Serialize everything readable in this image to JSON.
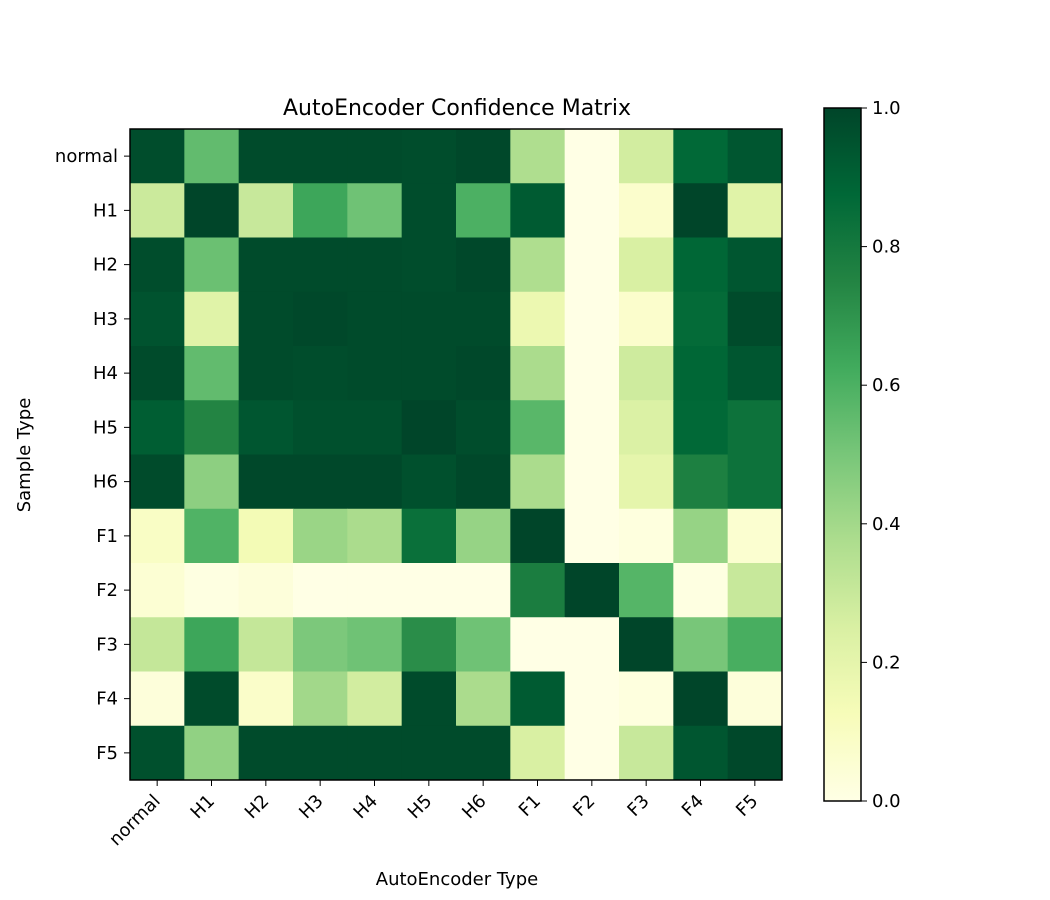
{
  "chart_data": {
    "type": "heatmap",
    "title": "AutoEncoder Confidence Matrix",
    "xlabel": "AutoEncoder Type",
    "ylabel": "Sample Type",
    "x_categories": [
      "normal",
      "H1",
      "H2",
      "H3",
      "H4",
      "H5",
      "H6",
      "F1",
      "F2",
      "F3",
      "F4",
      "F5"
    ],
    "y_categories": [
      "normal",
      "H1",
      "H2",
      "H3",
      "H4",
      "H5",
      "H6",
      "F1",
      "F2",
      "F3",
      "F4",
      "F5"
    ],
    "values": [
      [
        0.97,
        0.55,
        0.98,
        0.98,
        0.98,
        0.97,
        0.99,
        0.37,
        0.0,
        0.27,
        0.87,
        0.94
      ],
      [
        0.29,
        1.0,
        0.3,
        0.64,
        0.52,
        0.97,
        0.6,
        0.92,
        0.0,
        0.07,
        1.0,
        0.22
      ],
      [
        0.97,
        0.53,
        0.98,
        0.98,
        0.98,
        0.97,
        0.99,
        0.37,
        0.0,
        0.25,
        0.88,
        0.94
      ],
      [
        0.95,
        0.22,
        0.98,
        0.99,
        0.98,
        0.98,
        0.98,
        0.17,
        0.0,
        0.07,
        0.86,
        0.98
      ],
      [
        0.98,
        0.55,
        0.98,
        0.97,
        0.98,
        0.98,
        0.99,
        0.38,
        0.0,
        0.28,
        0.88,
        0.94
      ],
      [
        0.91,
        0.75,
        0.94,
        0.96,
        0.96,
        1.0,
        0.97,
        0.57,
        0.0,
        0.24,
        0.87,
        0.83
      ],
      [
        0.98,
        0.45,
        0.99,
        0.99,
        0.99,
        0.96,
        0.99,
        0.38,
        0.0,
        0.2,
        0.77,
        0.83
      ],
      [
        0.09,
        0.59,
        0.14,
        0.42,
        0.38,
        0.84,
        0.43,
        1.0,
        0.0,
        0.02,
        0.43,
        0.06
      ],
      [
        0.05,
        0.01,
        0.03,
        0.0,
        0.0,
        0.0,
        0.0,
        0.78,
        1.0,
        0.58,
        0.01,
        0.3
      ],
      [
        0.31,
        0.64,
        0.31,
        0.49,
        0.52,
        0.72,
        0.52,
        0.0,
        0.0,
        1.0,
        0.5,
        0.61
      ],
      [
        0.03,
        0.98,
        0.08,
        0.4,
        0.27,
        0.98,
        0.38,
        0.92,
        0.0,
        0.02,
        1.0,
        0.03
      ],
      [
        0.96,
        0.44,
        0.98,
        0.98,
        0.98,
        0.98,
        0.98,
        0.25,
        0.0,
        0.3,
        0.94,
        0.99
      ]
    ],
    "colormap": "YlGn",
    "colormap_stops": [
      "#ffffe5",
      "#f7fcb9",
      "#d9f0a3",
      "#addd8e",
      "#78c679",
      "#41ab5d",
      "#238443",
      "#006837",
      "#004529"
    ],
    "vmin": 0.0,
    "vmax": 1.0,
    "colorbar_ticks": [
      "0.0",
      "0.2",
      "0.4",
      "0.6",
      "0.8",
      "1.0"
    ],
    "grid": false,
    "legend": "colorbar-right"
  }
}
